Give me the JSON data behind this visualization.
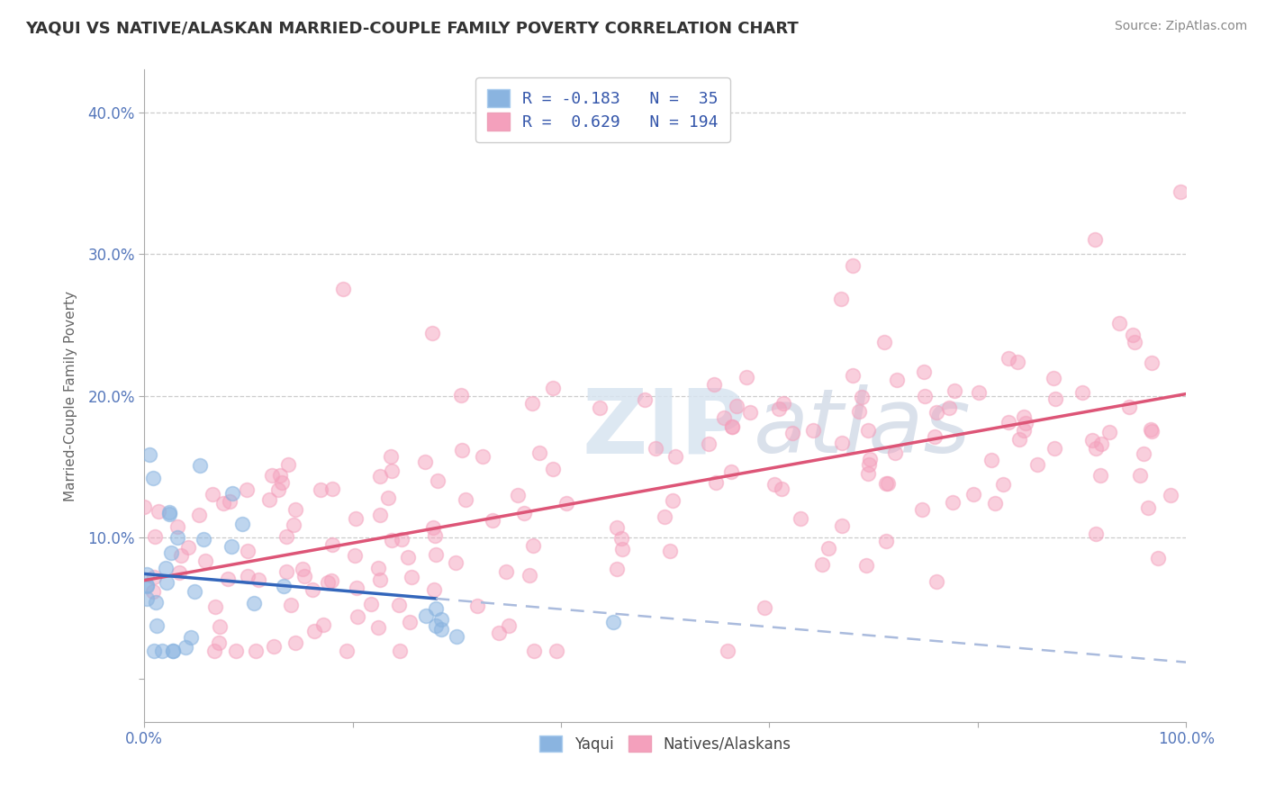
{
  "title": "YAQUI VS NATIVE/ALASKAN MARRIED-COUPLE FAMILY POVERTY CORRELATION CHART",
  "source": "Source: ZipAtlas.com",
  "ylabel": "Married-Couple Family Poverty",
  "xlim": [
    0.0,
    100.0
  ],
  "ylim": [
    -3.0,
    43.0
  ],
  "watermark_zip": "ZIP",
  "watermark_atlas": "atlas",
  "yaqui_color": "#8ab4e0",
  "native_color": "#f4a0bc",
  "trend_yaqui_solid_color": "#3366bb",
  "trend_yaqui_dash_color": "#aabbdd",
  "trend_native_color": "#dd5577",
  "R_yaqui": -0.183,
  "N_yaqui": 35,
  "R_native": 0.629,
  "N_native": 194,
  "background_color": "#ffffff",
  "title_color": "#333333",
  "tick_color": "#5577bb",
  "ylabel_color": "#666666",
  "legend_R_color": "#3355aa",
  "legend_N_color": "#3355aa",
  "seed_yaqui": 7,
  "seed_native": 13
}
